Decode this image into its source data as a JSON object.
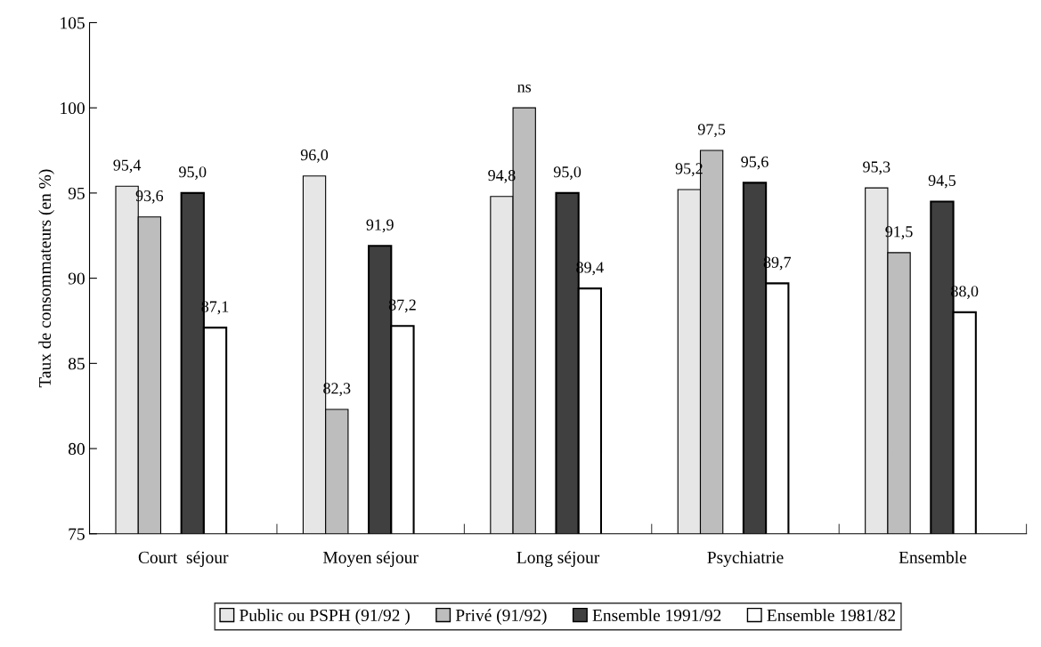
{
  "chart_data": {
    "type": "bar",
    "ylabel": "Taux de consommateurs (en %)",
    "categories": [
      "Court  séjour",
      "Moyen séjour",
      "Long séjour",
      "Psychiatrie",
      "Ensemble"
    ],
    "series": [
      {
        "name": "Public ou PSPH (91/92 )",
        "color": "#e6e6e6",
        "values": [
          95.4,
          96.0,
          94.8,
          95.2,
          95.3
        ],
        "value_labels": [
          "95,4",
          "96,0",
          "94,8",
          "95,2",
          "95,3"
        ]
      },
      {
        "name": "Privé (91/92)",
        "color": "#bdbdbd",
        "values": [
          93.6,
          82.3,
          100,
          97.5,
          91.5
        ],
        "value_labels": [
          "93,6",
          "82,3",
          "ns",
          "97,5",
          "91,5"
        ]
      },
      {
        "name": "Ensemble 1991/92",
        "color": "#404040",
        "values": [
          95.0,
          91.9,
          95.0,
          95.6,
          94.5
        ],
        "value_labels": [
          "95,0",
          "91,9",
          "95,0",
          "95,6",
          "94,5"
        ]
      },
      {
        "name": "Ensemble 1981/82",
        "color": "#ffffff",
        "values": [
          87.1,
          87.2,
          89.4,
          89.7,
          88.0
        ],
        "value_labels": [
          "87,1",
          "87,2",
          "89,4",
          "89,7",
          "88,0"
        ]
      }
    ],
    "ylim": [
      75,
      105
    ],
    "yticks": [
      75,
      80,
      85,
      90,
      95,
      100,
      105
    ],
    "grid": false,
    "legend": "bottom"
  }
}
